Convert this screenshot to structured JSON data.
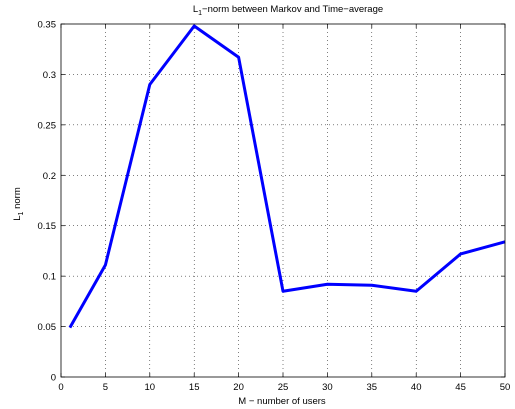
{
  "chart_data": {
    "type": "line",
    "title_prefix": "L",
    "title_sub": "1",
    "title_suffix": "−norm between Markov and Time−average",
    "xlabel": "M − number of users",
    "ylabel_prefix": "L",
    "ylabel_sub": "1",
    "ylabel_suffix": " norm",
    "xlim": [
      0,
      50
    ],
    "ylim": [
      0,
      0.35
    ],
    "xticks": [
      0,
      5,
      10,
      15,
      20,
      25,
      30,
      35,
      40,
      45,
      50
    ],
    "xtick_labels": [
      "0",
      "5",
      "10",
      "15",
      "20",
      "25",
      "30",
      "35",
      "40",
      "45",
      "50"
    ],
    "yticks": [
      0,
      0.05,
      0.1,
      0.15,
      0.2,
      0.25,
      0.3,
      0.35
    ],
    "ytick_labels": [
      "0",
      "0.05",
      "0.1",
      "0.15",
      "0.2",
      "0.25",
      "0.3",
      "0.35"
    ],
    "grid": true,
    "series": [
      {
        "color": "#0000ff",
        "x": [
          1,
          5,
          10,
          15,
          20,
          25,
          30,
          35,
          40,
          45,
          50
        ],
        "y": [
          0.049,
          0.111,
          0.29,
          0.348,
          0.317,
          0.085,
          0.092,
          0.091,
          0.085,
          0.122,
          0.134
        ]
      }
    ]
  }
}
